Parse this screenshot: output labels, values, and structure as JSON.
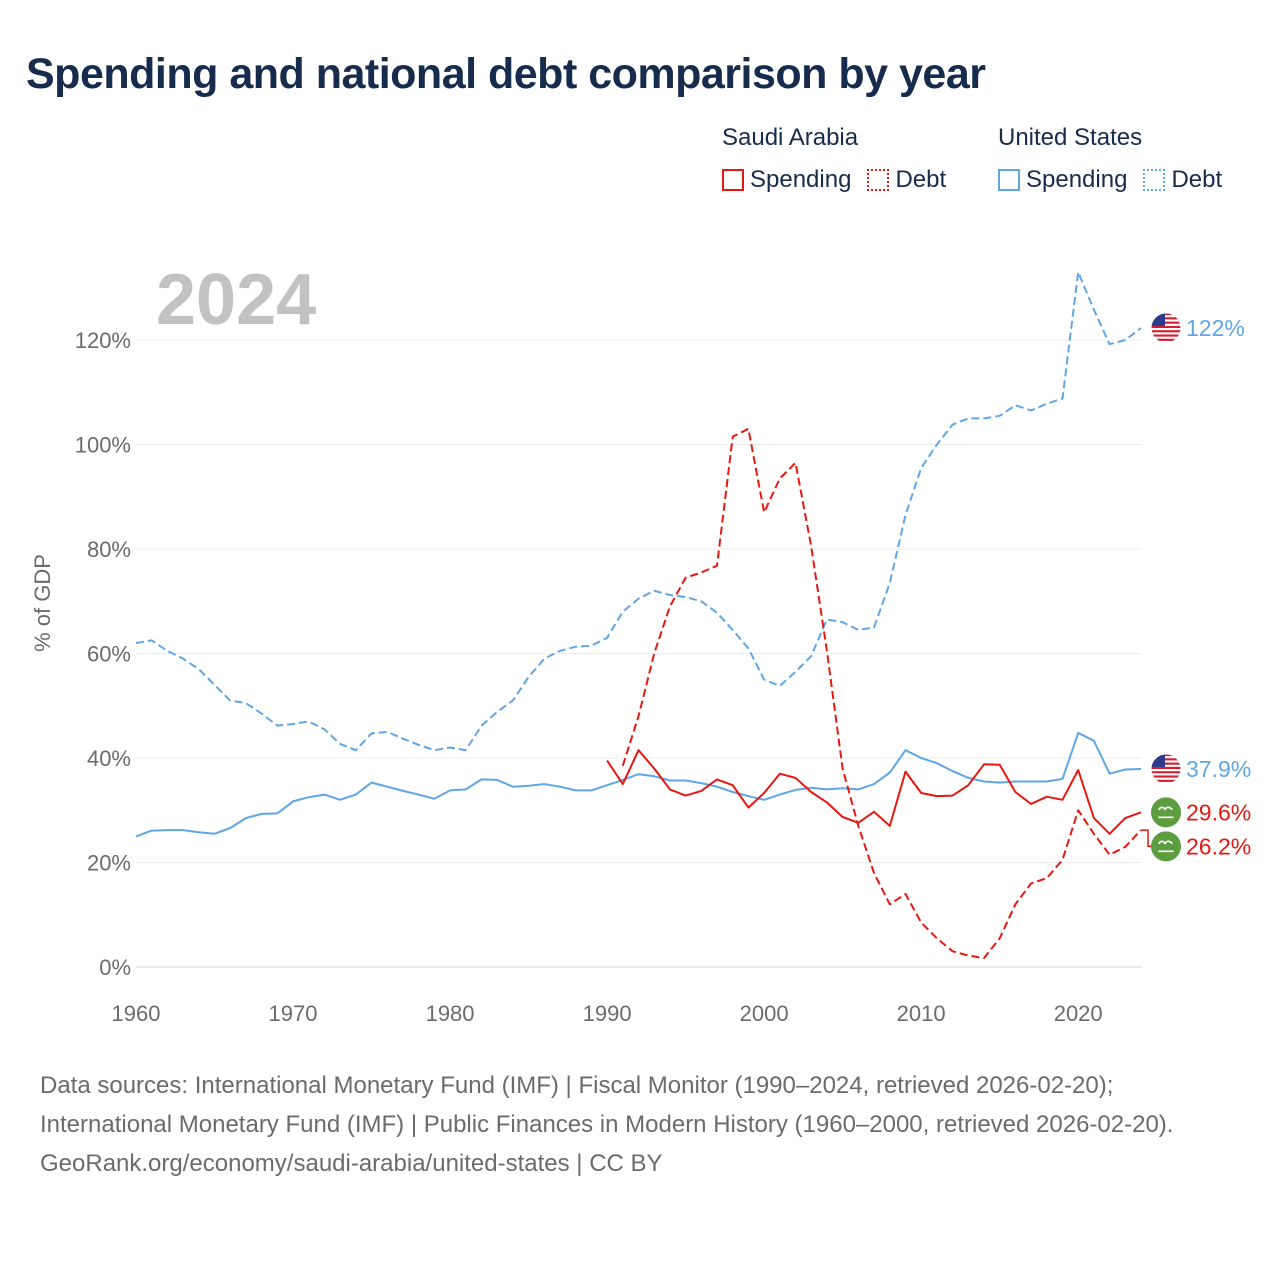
{
  "title": "Spending and national debt comparison by year",
  "legend": {
    "groups": [
      {
        "name": "Saudi Arabia",
        "color": "#e8170f",
        "items": [
          {
            "label": "Spending",
            "style": "solid"
          },
          {
            "label": "Debt",
            "style": "dotted"
          }
        ]
      },
      {
        "name": "United States",
        "color": "#5fa6e6",
        "items": [
          {
            "label": "Spending",
            "style": "solid"
          },
          {
            "label": "Debt",
            "style": "dotted"
          }
        ]
      }
    ]
  },
  "chart_data": {
    "type": "line",
    "year_watermark": "2024",
    "ylabel": "% of GDP",
    "xlim": [
      1960,
      2024
    ],
    "ylim": [
      0,
      130
    ],
    "x_ticks": [
      1960,
      1970,
      1980,
      1990,
      2000,
      2010,
      2020
    ],
    "x_tick_labels": [
      "1960",
      "1970",
      "1980",
      "1990",
      "2000",
      "2010",
      "2020"
    ],
    "y_ticks": [
      0,
      20,
      40,
      60,
      80,
      100,
      120
    ],
    "y_tick_labels": [
      "0%",
      "20%",
      "40%",
      "60%",
      "80%",
      "100%",
      "120%"
    ],
    "series": [
      {
        "name": "United States Debt",
        "country": "United States",
        "metric": "Debt",
        "color": "#5fa6e6",
        "dash": "dashed",
        "start_year": 1960,
        "values": [
          62,
          62.5,
          60.5,
          59,
          57,
          54,
          51,
          50.5,
          48.5,
          46.2,
          46.5,
          47,
          45.5,
          42.7,
          41.5,
          44.7,
          45,
          43.7,
          42.5,
          41.5,
          42,
          41.5,
          46.2,
          48.8,
          51,
          55.5,
          59,
          60.5,
          61.3,
          61.5,
          63,
          68,
          70.5,
          72,
          71.2,
          70.8,
          70,
          67.8,
          64.5,
          61,
          55,
          53.8,
          56.5,
          59.5,
          66.5,
          66,
          64.5,
          65,
          73.5,
          86.5,
          95.5,
          100,
          103.8,
          105,
          105,
          105.5,
          107.5,
          106.5,
          107.8,
          108.8,
          133,
          125.8,
          119.2,
          120,
          122.3
        ]
      },
      {
        "name": "United States Spending",
        "country": "United States",
        "metric": "Spending",
        "color": "#5fa6e6",
        "dash": "solid",
        "start_year": 1960,
        "values": [
          25,
          26.1,
          26.2,
          26.2,
          25.8,
          25.5,
          26.6,
          28.5,
          29.3,
          29.4,
          31.7,
          32.5,
          33,
          32,
          33,
          35.3,
          34.5,
          33.7,
          33,
          32.2,
          33.8,
          34,
          35.9,
          35.8,
          34.5,
          34.7,
          35,
          34.5,
          33.8,
          33.8,
          34.8,
          35.8,
          36.9,
          36.5,
          35.7,
          35.7,
          35.2,
          34.5,
          33.5,
          32.7,
          32,
          33,
          33.9,
          34.3,
          34,
          34.2,
          34,
          35,
          37.2,
          41.5,
          40,
          39,
          37.5,
          36.2,
          35.5,
          35.3,
          35.5,
          35.5,
          35.5,
          36,
          44.8,
          43.3,
          37,
          37.8,
          37.9
        ]
      },
      {
        "name": "Saudi Arabia Debt",
        "country": "Saudi Arabia",
        "metric": "Debt",
        "color": "#e8170f",
        "dash": "dashed",
        "start_year": 1991,
        "values": [
          38.5,
          48,
          60,
          69,
          74.5,
          75.5,
          76.8,
          101.5,
          103,
          87,
          93.5,
          96.5,
          80.5,
          60.5,
          38,
          27,
          18,
          12,
          14,
          8.5,
          5.5,
          3,
          2.2,
          1.7,
          5.5,
          12,
          16,
          17,
          20.5,
          30,
          25.5,
          21.5,
          23,
          26.2
        ]
      },
      {
        "name": "Saudi Arabia Spending",
        "country": "Saudi Arabia",
        "metric": "Spending",
        "color": "#e8170f",
        "dash": "solid",
        "start_year": 1990,
        "values": [
          39.5,
          35,
          41.5,
          38,
          34,
          32.8,
          33.7,
          35.9,
          34.8,
          30.5,
          33.3,
          37,
          36.2,
          33.5,
          31.5,
          28.7,
          27.6,
          29.7,
          27,
          37.4,
          33.3,
          32.7,
          32.8,
          34.8,
          38.8,
          38.7,
          33.5,
          31.2,
          32.6,
          32,
          37.7,
          28.5,
          25.5,
          28.5,
          29.6
        ]
      }
    ],
    "end_labels": [
      {
        "text": "122%",
        "color": "#5fa6e6",
        "flag": "us",
        "value": 122.3
      },
      {
        "text": "37.9%",
        "color": "#5fa6e6",
        "flag": "us",
        "value": 37.9
      },
      {
        "text": "29.6%",
        "color": "#e8170f",
        "flag": "sa",
        "value": 29.6
      },
      {
        "text": "26.2%",
        "color": "#e8170f",
        "flag": "sa",
        "value": 26.2
      }
    ]
  },
  "footer": {
    "sources": "Data sources: International Monetary Fund (IMF) | Fiscal Monitor (1990–2024, retrieved 2026-02-20); International Monetary Fund (IMF) | Public Finances in Modern History (1960–2000, retrieved 2026-02-20).",
    "credit": "GeoRank.org/economy/saudi-arabia/united-states | CC BY"
  }
}
